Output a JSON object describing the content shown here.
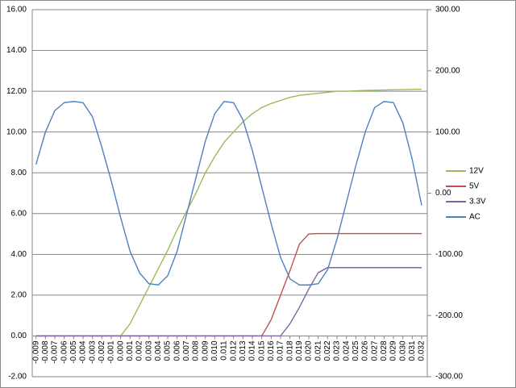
{
  "chart_data": {
    "type": "line",
    "x": [
      -0.009,
      -0.008,
      -0.007,
      -0.006,
      -0.005,
      -0.004,
      -0.003,
      -0.002,
      -0.001,
      0,
      0.001,
      0.002,
      0.003,
      0.004,
      0.005,
      0.006,
      0.007,
      0.008,
      0.009,
      0.01,
      0.011,
      0.012,
      0.013,
      0.014,
      0.015,
      0.016,
      0.017,
      0.018,
      0.019,
      0.02,
      0.021,
      0.022,
      0.023,
      0.024,
      0.025,
      0.026,
      0.027,
      0.028,
      0.029,
      0.03,
      0.031,
      0.032
    ],
    "xlim": [
      -0.0094,
      0.0326
    ],
    "xticks": [
      -0.009,
      -0.008,
      -0.007,
      -0.006,
      -0.005,
      -0.004,
      -0.003,
      -0.002,
      -0.001,
      {
        "value": 0,
        "label": "0.000"
      },
      0.001,
      0.002,
      0.003,
      0.004,
      0.005,
      0.006,
      0.007,
      0.008,
      0.009,
      {
        "value": 0.01,
        "label": "0.010"
      },
      0.011,
      0.012,
      0.013,
      0.014,
      0.015,
      0.016,
      0.017,
      0.018,
      0.019,
      {
        "value": 0.02,
        "label": "0.020"
      },
      0.021,
      0.022,
      0.023,
      0.024,
      0.025,
      0.026,
      0.027,
      0.028,
      0.029,
      {
        "value": 0.03,
        "label": "0.030"
      },
      0.031,
      0.032
    ],
    "ylim": [
      -2,
      16
    ],
    "yticks": [
      {
        "value": -2,
        "label": "-2.00"
      },
      {
        "value": 0,
        "label": "0.00"
      },
      {
        "value": 2,
        "label": "2.00"
      },
      {
        "value": 4,
        "label": "4.00"
      },
      {
        "value": 6,
        "label": "6.00"
      },
      {
        "value": 8,
        "label": "8.00"
      },
      {
        "value": 10,
        "label": "10.00"
      },
      {
        "value": 12,
        "label": "12.00"
      },
      {
        "value": 14,
        "label": "14.00"
      },
      {
        "value": 16,
        "label": "16.00"
      }
    ],
    "y2lim": [
      -300,
      300
    ],
    "y2ticks": [
      {
        "value": -300,
        "label": "-300.00"
      },
      {
        "value": -200,
        "label": "-200.00"
      },
      {
        "value": -100,
        "label": "-100.00"
      },
      {
        "value": 0,
        "label": "0.00"
      },
      {
        "value": 100,
        "label": "100.00"
      },
      {
        "value": 200,
        "label": "200.00"
      },
      {
        "value": 300,
        "label": "300.00"
      }
    ],
    "grid": true,
    "legend": "right",
    "series": [
      {
        "name": "12V",
        "color": "#9bbb59",
        "values": [
          0,
          0,
          0,
          0,
          0,
          0,
          0,
          0,
          0,
          0,
          0.6,
          1.5,
          2.4,
          3.3,
          4.2,
          5.2,
          6.1,
          7.0,
          8.0,
          8.8,
          9.5,
          10.0,
          10.5,
          10.9,
          11.2,
          11.4,
          11.55,
          11.7,
          11.8,
          11.85,
          11.9,
          11.95,
          12.0,
          12.0,
          12.02,
          12.04,
          12.05,
          12.06,
          12.07,
          12.08,
          12.09,
          12.1
        ]
      },
      {
        "name": "5V",
        "color": "#c0504d",
        "values": [
          0,
          0,
          0,
          0,
          0,
          0,
          0,
          0,
          0,
          0,
          0,
          0,
          0,
          0,
          0,
          0,
          0,
          0,
          0,
          0,
          0,
          0,
          0,
          0,
          0,
          0.8,
          2.0,
          3.2,
          4.5,
          5.0,
          5.02,
          5.02,
          5.02,
          5.02,
          5.02,
          5.02,
          5.02,
          5.02,
          5.02,
          5.02,
          5.02,
          5.02
        ]
      },
      {
        "name": "3.3V",
        "color": "#8064a2",
        "values": [
          0,
          0,
          0,
          0,
          0,
          0,
          0,
          0,
          0,
          0,
          0,
          0,
          0,
          0,
          0,
          0,
          0,
          0,
          0,
          0,
          0,
          0,
          0,
          0,
          0,
          0,
          0,
          0.6,
          1.4,
          2.3,
          3.1,
          3.35,
          3.35,
          3.35,
          3.35,
          3.35,
          3.35,
          3.35,
          3.35,
          3.35,
          3.35,
          3.35
        ]
      },
      {
        "name": "AC",
        "color": "#4f81bd",
        "axis": "y2",
        "values": [
          47,
          100,
          135,
          148,
          150,
          148,
          125,
          75,
          20,
          -40,
          -95,
          -130,
          -148,
          -150,
          -135,
          -95,
          -35,
          25,
          85,
          130,
          150,
          148,
          120,
          70,
          10,
          -50,
          -105,
          -140,
          -150,
          -150,
          -148,
          -125,
          -75,
          -15,
          45,
          100,
          140,
          150,
          148,
          115,
          55,
          -20
        ]
      }
    ]
  }
}
